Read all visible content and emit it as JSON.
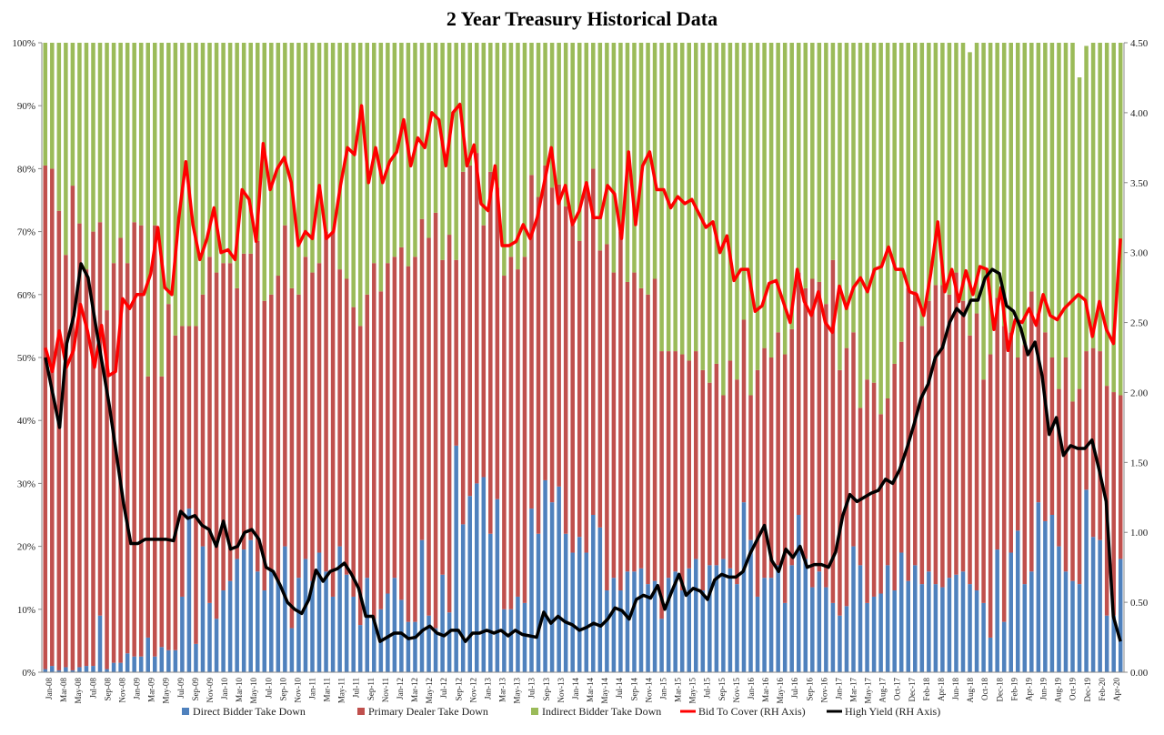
{
  "chart_data": {
    "type": "bar",
    "stacked": true,
    "title": "2 Year Treasury  Historical Data",
    "ylim": [
      0,
      100
    ],
    "y2lim": [
      0,
      4.5
    ],
    "yticks": [
      "0%",
      "10%",
      "20%",
      "30%",
      "40%",
      "50%",
      "60%",
      "70%",
      "80%",
      "90%",
      "100%"
    ],
    "y2ticks": [
      "0.00",
      "0.50",
      "1.00",
      "1.50",
      "2.00",
      "2.50",
      "3.00",
      "3.50",
      "4.00",
      "4.50"
    ],
    "xtick_labels": [
      "Jan-08",
      "Mar-08",
      "May-08",
      "Jul-08",
      "Sep-08",
      "Nov-08",
      "Jan-09",
      "Mar-09",
      "May-09",
      "Jul-09",
      "Sep-09",
      "Nov-09",
      "Jan-10",
      "Mar-10",
      "May-10",
      "Jul-10",
      "Sep-10",
      "Nov-10",
      "Jan-11",
      "Mar-11",
      "May-11",
      "Jul-11",
      "Sep-11",
      "Nov-11",
      "Jan-12",
      "Mar-12",
      "May-12",
      "Jul-12",
      "Sep-12",
      "Nov-12",
      "Jan-13",
      "Mar-13",
      "May-13",
      "Jul-13",
      "Sep-13",
      "Nov-13",
      "Jan-14",
      "Mar-14",
      "May-14",
      "Jul-14",
      "Sep-14",
      "Nov-14",
      "Jan-15",
      "Mar-15",
      "May-15",
      "Jul-15",
      "Sep-15",
      "Nov-15",
      "Jan-16",
      "Mar-16",
      "May-16",
      "Jul-16",
      "Sep-16",
      "Nov-16",
      "Jan-17",
      "Mar-17",
      "May-17",
      "Aug-17",
      "Oct-17",
      "Dec-17",
      "Feb-18",
      "Apr-18",
      "Jun-18",
      "Aug-18",
      "Oct-18",
      "Dec-18",
      "Feb-19",
      "Apr-19",
      "Jun-19",
      "Aug-19",
      "Oct-19",
      "Dec-19",
      "Feb-20",
      "Apr-20"
    ],
    "grid": false,
    "legend_position": "bottom",
    "colors": {
      "direct": "#4f81bd",
      "primary": "#c0504d",
      "indirect": "#9bbb59",
      "bid_to_cover": "#ff0000",
      "high_yield": "#000000"
    },
    "series": [
      {
        "name": "Direct Bidder Take Down",
        "values": [
          0.5,
          1.0,
          0.3,
          0.8,
          0.3,
          0.8,
          1.0,
          1.0,
          9.0,
          0.5,
          1.5,
          1.5,
          3.0,
          2.5,
          2.5,
          5.5,
          2.5,
          4.0,
          3.5,
          3.5,
          12.0,
          26.0,
          4.5,
          20.0,
          11.0,
          8.5,
          13.0,
          14.5,
          18.0,
          19.5,
          21.0,
          16.0,
          13.0,
          16.0,
          14.5,
          20.0,
          7.0,
          15.0,
          18.0,
          14.5,
          19.0,
          16.0,
          12.0,
          20.0,
          15.5,
          12.0,
          7.5,
          15.0,
          8.5,
          10.0,
          12.5,
          15.0,
          11.5,
          8.0,
          8.0,
          21.0,
          9.0,
          7.0,
          15.5,
          9.5,
          36.0,
          23.5,
          28.0,
          30.0,
          31.0,
          22.0,
          27.5,
          10.0,
          10.0,
          12.0,
          11.0,
          26.0,
          22.0,
          30.5,
          27.0,
          29.5,
          22.0,
          19.0,
          21.5,
          19.0,
          25.0,
          23.0,
          13.0,
          15.0,
          13.0,
          16.0,
          16.0,
          16.5,
          14.0,
          14.5,
          8.5,
          15.0,
          16.0,
          13.0,
          16.5,
          18.0,
          13.0,
          17.0,
          17.0,
          18.0,
          16.5,
          14.0,
          27.0,
          21.0,
          12.0,
          15.0,
          15.0,
          17.0,
          11.0,
          17.0,
          25.0,
          18.0,
          13.5,
          16.0,
          13.5,
          11.0,
          9.0,
          10.5,
          20.0,
          17.0,
          11.0,
          12.0,
          12.5,
          17.0,
          13.0,
          19.0,
          14.5,
          17.0,
          14.0,
          16.0,
          14.0,
          13.5,
          15.0,
          15.5,
          16.0,
          14.0,
          13.0,
          11.0,
          5.5,
          19.5,
          8.0,
          19.0,
          22.5,
          14.0,
          16.0,
          27.0,
          24.0,
          25.0,
          20.0,
          16.0,
          14.5,
          14.0,
          29.0,
          21.5,
          21.0,
          9.0,
          9.0,
          18.0
        ]
      },
      {
        "name": "Primary Dealer Take Down",
        "values": [
          80.0,
          79.0,
          73.0,
          65.5,
          77.0,
          70.5,
          63.0,
          69.0,
          62.5,
          57.0,
          63.5,
          67.5,
          62.0,
          69.0,
          68.5,
          41.5,
          68.5,
          43.0,
          55.0,
          50.0,
          43.0,
          29.0,
          50.5,
          40.0,
          55.0,
          55.0,
          52.0,
          50.5,
          43.0,
          47.0,
          45.5,
          52.5,
          46.0,
          44.0,
          48.5,
          51.0,
          54.0,
          45.0,
          48.0,
          49.0,
          46.0,
          54.0,
          58.0,
          44.0,
          47.0,
          46.0,
          47.5,
          45.0,
          56.5,
          50.5,
          52.5,
          51.0,
          56.0,
          56.5,
          58.0,
          51.0,
          60.0,
          66.0,
          50.0,
          60.0,
          29.5,
          56.0,
          52.5,
          52.5,
          40.0,
          57.5,
          49.5,
          53.0,
          56.0,
          52.0,
          55.0,
          53.0,
          53.5,
          50.0,
          50.0,
          48.0,
          52.0,
          52.0,
          47.0,
          58.0,
          55.0,
          44.0,
          55.0,
          48.5,
          57.0,
          46.0,
          47.5,
          44.5,
          46.0,
          48.0,
          42.5,
          36.0,
          35.0,
          37.5,
          33.0,
          33.0,
          35.0,
          29.0,
          32.0,
          26.0,
          33.0,
          32.5,
          29.0,
          23.0,
          36.0,
          36.5,
          35.0,
          37.0,
          39.5,
          37.5,
          38.5,
          43.0,
          49.0,
          46.0,
          45.0,
          54.5,
          39.0,
          41.0,
          34.0,
          25.0,
          35.5,
          34.0,
          28.5,
          26.5,
          36.0,
          33.5,
          46.5,
          43.5,
          41.0,
          43.0,
          47.5,
          48.0,
          45.0,
          48.0,
          43.0,
          39.5,
          44.0,
          35.5,
          45.0,
          40.0,
          47.0,
          35.0,
          27.5,
          38.0,
          44.5,
          30.0,
          30.0,
          25.0,
          25.0,
          34.0,
          28.5,
          31.0,
          22.0,
          30.0,
          30.0,
          36.5,
          35.5,
          26.0
        ]
      },
      {
        "name": "Indirect Bidder Take Down",
        "values": [
          19.5,
          20.0,
          26.7,
          33.7,
          22.7,
          28.7,
          36.0,
          30.0,
          28.5,
          42.5,
          35.0,
          31.0,
          35.0,
          28.5,
          29.0,
          53.0,
          29.0,
          53.0,
          41.5,
          46.5,
          45.0,
          45.0,
          45.0,
          40.0,
          34.0,
          36.5,
          35.0,
          35.0,
          39.0,
          33.5,
          33.5,
          31.5,
          41.0,
          40.0,
          37.0,
          29.0,
          39.0,
          40.0,
          34.0,
          36.5,
          35.0,
          30.0,
          30.0,
          36.0,
          37.5,
          42.0,
          45.0,
          40.0,
          35.0,
          39.5,
          35.0,
          34.0,
          32.5,
          35.5,
          34.0,
          28.0,
          31.0,
          27.0,
          34.5,
          30.5,
          34.5,
          20.5,
          19.5,
          17.5,
          29.0,
          20.5,
          23.0,
          37.0,
          34.0,
          36.0,
          34.0,
          21.0,
          24.5,
          19.5,
          23.0,
          22.5,
          26.0,
          29.0,
          31.5,
          23.0,
          20.0,
          33.0,
          32.0,
          36.5,
          30.0,
          38.0,
          36.5,
          39.0,
          40.0,
          37.5,
          49.0,
          49.0,
          49.0,
          49.5,
          50.5,
          49.0,
          52.0,
          54.0,
          51.0,
          56.0,
          50.5,
          53.5,
          44.0,
          56.0,
          52.0,
          48.5,
          50.0,
          46.0,
          49.5,
          45.5,
          36.5,
          39.0,
          37.5,
          38.0,
          41.5,
          34.5,
          52.0,
          48.5,
          46.0,
          58.0,
          53.5,
          54.0,
          59.0,
          56.5,
          51.0,
          47.5,
          39.0,
          39.5,
          45.0,
          41.0,
          38.5,
          38.5,
          41.0,
          36.5,
          41.0,
          45.0,
          43.0,
          53.5,
          49.5,
          40.5,
          45.0,
          46.0,
          50.0,
          48.0,
          39.5,
          43.0,
          46.0,
          50.0,
          55.0,
          50.0,
          57.0,
          49.5,
          48.5,
          49.5,
          55.0,
          55.0,
          55.5,
          56.0
        ]
      },
      {
        "name": "Bid To Cover (RH Axis)",
        "axis": "right",
        "values": [
          2.32,
          2.15,
          2.44,
          2.18,
          2.3,
          2.63,
          2.44,
          2.18,
          2.48,
          2.12,
          2.15,
          2.67,
          2.6,
          2.7,
          2.7,
          2.85,
          3.18,
          2.75,
          2.7,
          3.25,
          3.65,
          3.2,
          2.95,
          3.1,
          3.32,
          3.0,
          3.02,
          2.95,
          3.45,
          3.38,
          3.08,
          3.78,
          3.45,
          3.6,
          3.68,
          3.5,
          3.05,
          3.15,
          3.1,
          3.48,
          3.1,
          3.15,
          3.48,
          3.75,
          3.7,
          4.05,
          3.5,
          3.75,
          3.5,
          3.65,
          3.72,
          3.95,
          3.62,
          3.82,
          3.75,
          4.0,
          3.95,
          3.62,
          4.0,
          4.06,
          3.62,
          3.77,
          3.35,
          3.3,
          3.62,
          3.05,
          3.05,
          3.08,
          3.2,
          3.1,
          3.25,
          3.5,
          3.75,
          3.35,
          3.48,
          3.2,
          3.3,
          3.5,
          3.25,
          3.25,
          3.48,
          3.42,
          3.1,
          3.72,
          3.2,
          3.62,
          3.72,
          3.45,
          3.45,
          3.32,
          3.4,
          3.35,
          3.38,
          3.28,
          3.18,
          3.22,
          3.0,
          3.12,
          2.8,
          2.88,
          2.88,
          2.58,
          2.62,
          2.78,
          2.8,
          2.65,
          2.5,
          2.88,
          2.65,
          2.55,
          2.72,
          2.5,
          2.43,
          2.76,
          2.6,
          2.75,
          2.82,
          2.72,
          2.88,
          2.9,
          3.04,
          2.88,
          2.88,
          2.72,
          2.7,
          2.55,
          2.85,
          3.22,
          2.72,
          2.88,
          2.65,
          2.87,
          2.7,
          2.9,
          2.88,
          2.45,
          2.75,
          2.3,
          2.52,
          2.5,
          2.6,
          2.48,
          2.7,
          2.55,
          2.52,
          2.6,
          2.65,
          2.7,
          2.66,
          2.4,
          2.65,
          2.45,
          2.35,
          3.1
        ]
      },
      {
        "name": "High Yield (RH Axis)",
        "axis": "right",
        "values": [
          2.25,
          2.0,
          1.75,
          2.35,
          2.55,
          2.92,
          2.82,
          2.5,
          2.2,
          1.9,
          1.55,
          1.2,
          0.92,
          0.92,
          0.95,
          0.95,
          0.95,
          0.95,
          0.94,
          1.15,
          1.1,
          1.12,
          1.05,
          1.02,
          0.9,
          1.08,
          0.88,
          0.9,
          1.0,
          1.02,
          0.95,
          0.75,
          0.72,
          0.62,
          0.5,
          0.45,
          0.42,
          0.52,
          0.73,
          0.65,
          0.72,
          0.74,
          0.78,
          0.7,
          0.6,
          0.4,
          0.4,
          0.22,
          0.25,
          0.28,
          0.28,
          0.24,
          0.25,
          0.3,
          0.33,
          0.28,
          0.26,
          0.3,
          0.3,
          0.22,
          0.28,
          0.28,
          0.3,
          0.28,
          0.3,
          0.26,
          0.3,
          0.27,
          0.26,
          0.25,
          0.43,
          0.35,
          0.4,
          0.36,
          0.34,
          0.3,
          0.32,
          0.35,
          0.33,
          0.38,
          0.46,
          0.44,
          0.38,
          0.52,
          0.55,
          0.53,
          0.62,
          0.45,
          0.58,
          0.7,
          0.55,
          0.6,
          0.58,
          0.52,
          0.66,
          0.7,
          0.68,
          0.68,
          0.72,
          0.85,
          0.95,
          1.05,
          0.8,
          0.72,
          0.88,
          0.82,
          0.9,
          0.75,
          0.77,
          0.77,
          0.75,
          0.86,
          1.12,
          1.27,
          1.22,
          1.25,
          1.28,
          1.3,
          1.38,
          1.35,
          1.45,
          1.6,
          1.77,
          1.96,
          2.06,
          2.25,
          2.32,
          2.5,
          2.6,
          2.55,
          2.66,
          2.66,
          2.82,
          2.88,
          2.85,
          2.62,
          2.58,
          2.46,
          2.27,
          2.36,
          2.12,
          1.7,
          1.82,
          1.55,
          1.62,
          1.6,
          1.6,
          1.66,
          1.45,
          1.22,
          0.4,
          0.22
        ]
      }
    ]
  }
}
